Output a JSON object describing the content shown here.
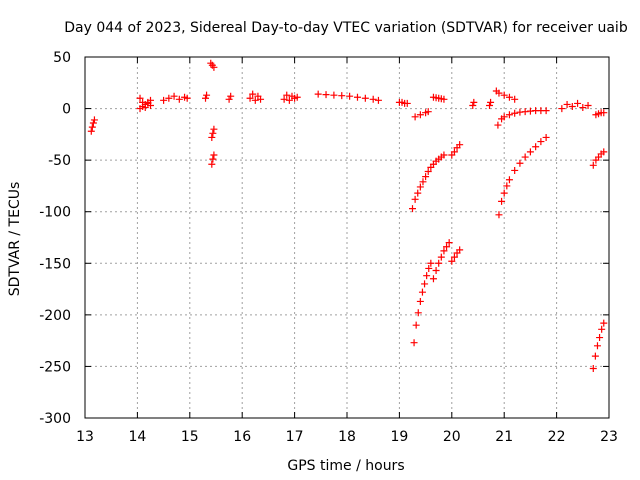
{
  "chart_data": {
    "type": "scatter",
    "title": "Day 044 of 2023, Sidereal Day-to-day VTEC variation (SDTVAR) for receiver uaib",
    "xlabel": "GPS time / hours",
    "ylabel": "SDTVAR / TECUs",
    "xlim": [
      13,
      23
    ],
    "ylim": [
      -300,
      50
    ],
    "xticks": [
      "13",
      "14",
      "15",
      "16",
      "17",
      "18",
      "19",
      "20",
      "21",
      "22",
      "23"
    ],
    "yticks": [
      "50",
      "0",
      "-50",
      "-100",
      "-150",
      "-200",
      "-250",
      "-300"
    ],
    "grid": true,
    "marker": "+",
    "color": "#ff0000",
    "series": [
      {
        "name": "s1",
        "x": [
          13.12,
          13.14,
          13.16,
          13.18
        ],
        "y": [
          -22,
          -18,
          -14,
          -11
        ]
      },
      {
        "name": "s2",
        "x": [
          14.05,
          14.1,
          14.15,
          14.2,
          14.25,
          14.05,
          14.1,
          14.15,
          14.2,
          14.25
        ],
        "y": [
          0,
          2,
          4,
          6,
          8,
          10,
          6,
          1,
          5,
          3
        ]
      },
      {
        "name": "s3",
        "x": [
          14.5,
          14.6,
          14.7,
          14.8,
          14.9,
          14.95
        ],
        "y": [
          8,
          10,
          12,
          9,
          11,
          10
        ]
      },
      {
        "name": "s4",
        "x": [
          15.3,
          15.32
        ],
        "y": [
          10,
          13
        ]
      },
      {
        "name": "s5",
        "x": [
          15.4,
          15.43,
          15.46
        ],
        "y": [
          44,
          42,
          40
        ]
      },
      {
        "name": "s6",
        "x": [
          15.42,
          15.44,
          15.46
        ],
        "y": [
          -28,
          -24,
          -20
        ]
      },
      {
        "name": "s7",
        "x": [
          15.42,
          15.44,
          15.46
        ],
        "y": [
          -54,
          -49,
          -45
        ]
      },
      {
        "name": "s8",
        "x": [
          15.75,
          15.78
        ],
        "y": [
          9,
          12
        ]
      },
      {
        "name": "s9",
        "x": [
          16.15,
          16.2,
          16.25,
          16.3,
          16.35
        ],
        "y": [
          10,
          14,
          8,
          12,
          9
        ]
      },
      {
        "name": "s10",
        "x": [
          16.8,
          16.85,
          16.9,
          16.95,
          17.0,
          17.05
        ],
        "y": [
          9,
          13,
          8,
          12,
          10,
          11
        ]
      },
      {
        "name": "s11",
        "x": [
          17.45,
          17.6,
          17.75,
          17.9,
          18.05,
          18.2,
          18.35,
          18.5,
          18.6
        ],
        "y": [
          14,
          13.5,
          13,
          12.5,
          12,
          11,
          10,
          9,
          8
        ]
      },
      {
        "name": "s12",
        "x": [
          19.0,
          19.05,
          19.1,
          19.15
        ],
        "y": [
          6,
          6,
          5,
          5
        ]
      },
      {
        "name": "s13",
        "x": [
          19.3,
          19.4,
          19.5,
          19.55
        ],
        "y": [
          -8,
          -6,
          -4,
          -3
        ]
      },
      {
        "name": "s14",
        "x": [
          19.65,
          19.7,
          19.75,
          19.8,
          19.85
        ],
        "y": [
          11,
          10.5,
          10,
          9.5,
          9
        ]
      },
      {
        "name": "s15",
        "x": [
          19.25,
          19.3,
          19.35,
          19.4,
          19.45,
          19.5,
          19.55,
          19.6,
          19.65,
          19.7,
          19.75,
          19.8,
          19.85
        ],
        "y": [
          -97,
          -88,
          -82,
          -76,
          -71,
          -66,
          -61,
          -57,
          -54,
          -51,
          -49,
          -47,
          -45
        ]
      },
      {
        "name": "s16",
        "x": [
          20.0,
          20.05,
          20.1,
          20.15
        ],
        "y": [
          -45,
          -42,
          -38,
          -35
        ]
      },
      {
        "name": "s17",
        "x": [
          19.28,
          19.32,
          19.36,
          19.4,
          19.44,
          19.48,
          19.52,
          19.56,
          19.6
        ],
        "y": [
          -227,
          -210,
          -198,
          -187,
          -178,
          -170,
          -162,
          -155,
          -150
        ]
      },
      {
        "name": "s18",
        "x": [
          19.65,
          19.7,
          19.75,
          19.8,
          19.85,
          19.9,
          19.95
        ],
        "y": [
          -165,
          -157,
          -150,
          -144,
          -138,
          -134,
          -130
        ]
      },
      {
        "name": "s19",
        "x": [
          20.0,
          20.05,
          20.1,
          20.15
        ],
        "y": [
          -148,
          -144,
          -140,
          -137
        ]
      },
      {
        "name": "s20",
        "x": [
          20.4,
          20.42
        ],
        "y": [
          3,
          6
        ]
      },
      {
        "name": "s21",
        "x": [
          20.72,
          20.74
        ],
        "y": [
          3,
          6
        ]
      },
      {
        "name": "s22",
        "x": [
          20.85,
          20.9,
          21.0,
          21.1,
          21.2
        ],
        "y": [
          17,
          15,
          13,
          11,
          9
        ]
      },
      {
        "name": "s23",
        "x": [
          20.88,
          20.95,
          21.0,
          21.1,
          21.2,
          21.3,
          21.4,
          21.5,
          21.6,
          21.7,
          21.8
        ],
        "y": [
          -16,
          -10,
          -8,
          -6,
          -4.5,
          -3.5,
          -3,
          -2.5,
          -2,
          -2,
          -2
        ]
      },
      {
        "name": "s24",
        "x": [
          20.9,
          20.95,
          21.0,
          21.05,
          21.1,
          21.2,
          21.3,
          21.4,
          21.5,
          21.6,
          21.7,
          21.8
        ],
        "y": [
          -103,
          -90,
          -82,
          -75,
          -69,
          -60,
          -53,
          -47,
          -42,
          -37,
          -32,
          -28
        ]
      },
      {
        "name": "s25",
        "x": [
          22.1,
          22.2,
          22.3,
          22.4,
          22.5,
          22.6
        ],
        "y": [
          0,
          4,
          2,
          5,
          1,
          3
        ]
      },
      {
        "name": "s26",
        "x": [
          22.75,
          22.8,
          22.85,
          22.9
        ],
        "y": [
          -6,
          -5,
          -4,
          -4
        ]
      },
      {
        "name": "s27",
        "x": [
          22.7,
          22.75,
          22.8,
          22.85,
          22.9
        ],
        "y": [
          -55,
          -50,
          -47,
          -44,
          -42
        ]
      },
      {
        "name": "s28",
        "x": [
          22.7,
          22.74,
          22.78,
          22.82,
          22.86,
          22.9
        ],
        "y": [
          -252,
          -240,
          -230,
          -222,
          -214,
          -208
        ]
      }
    ]
  }
}
